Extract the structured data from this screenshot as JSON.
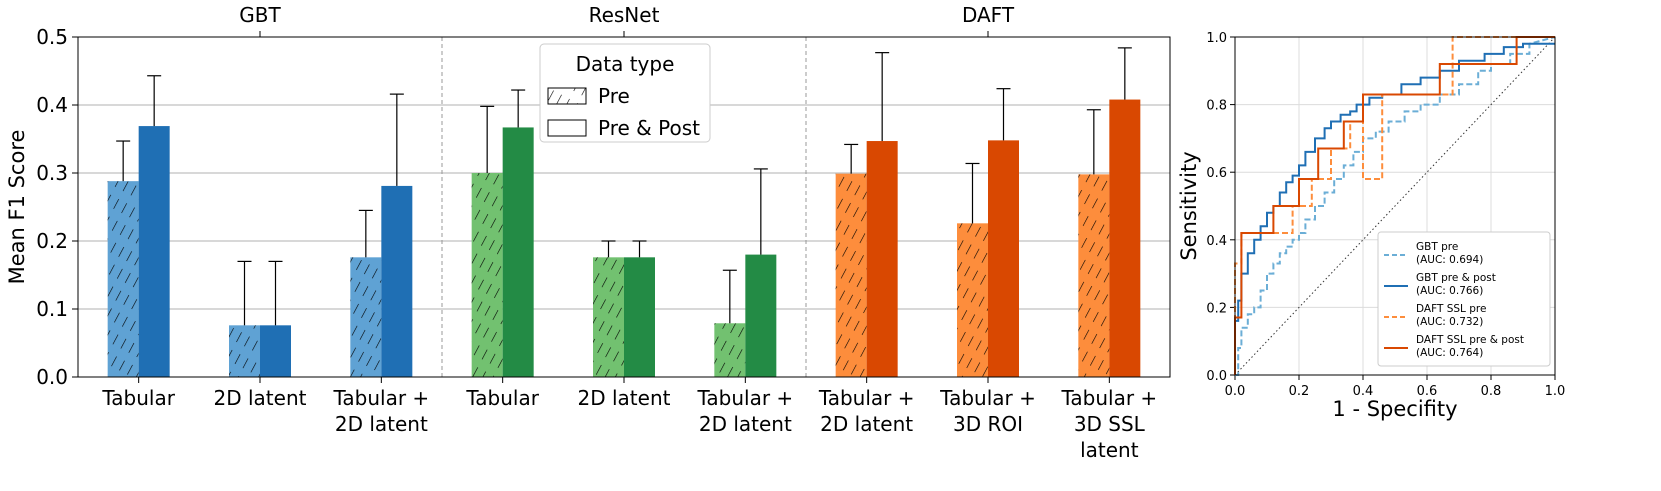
{
  "chart_data": [
    {
      "type": "bar",
      "ylabel": "Mean F1 Score",
      "ylim": [
        0,
        0.5
      ],
      "yticks": [
        "0.0",
        "0.1",
        "0.2",
        "0.3",
        "0.4",
        "0.5"
      ],
      "grid": true,
      "legend": {
        "title": "Data type",
        "placement": "top-center",
        "entries": [
          {
            "label": "Pre",
            "pattern": "hatched"
          },
          {
            "label": "Pre & Post",
            "pattern": "solid"
          }
        ]
      },
      "groups": [
        {
          "name": "GBT",
          "color_pre": "#5fa2d4",
          "color_post": "#1f6fb4",
          "categories": [
            {
              "label": [
                "Tabular"
              ],
              "pre": 0.288,
              "pre_err": 0.059,
              "post": 0.369,
              "post_err": 0.074
            },
            {
              "label": [
                "2D latent"
              ],
              "pre": 0.076,
              "pre_err": 0.094,
              "post": 0.076,
              "post_err": 0.094
            },
            {
              "label": [
                "Tabular +",
                "2D latent"
              ],
              "pre": 0.176,
              "pre_err": 0.069,
              "post": 0.281,
              "post_err": 0.135
            }
          ]
        },
        {
          "name": "ResNet",
          "color_pre": "#72c170",
          "color_post": "#238b45",
          "categories": [
            {
              "label": [
                "Tabular"
              ],
              "pre": 0.3,
              "pre_err": 0.098,
              "post": 0.367,
              "post_err": 0.055
            },
            {
              "label": [
                "2D latent"
              ],
              "pre": 0.176,
              "pre_err": 0.024,
              "post": 0.176,
              "post_err": 0.024
            },
            {
              "label": [
                "Tabular +",
                "2D latent"
              ],
              "pre": 0.079,
              "pre_err": 0.078,
              "post": 0.18,
              "post_err": 0.126
            }
          ]
        },
        {
          "name": "DAFT",
          "color_pre": "#fd8d3c",
          "color_post": "#d94801",
          "categories": [
            {
              "label": [
                "Tabular +",
                "2D latent"
              ],
              "pre": 0.299,
              "pre_err": 0.043,
              "post": 0.347,
              "post_err": 0.13
            },
            {
              "label": [
                "Tabular +",
                "3D ROI"
              ],
              "pre": 0.226,
              "pre_err": 0.088,
              "post": 0.348,
              "post_err": 0.076
            },
            {
              "label": [
                "Tabular +",
                "3D SSL",
                "latent"
              ],
              "pre": 0.298,
              "pre_err": 0.095,
              "post": 0.408,
              "post_err": 0.076
            }
          ]
        }
      ]
    },
    {
      "type": "line",
      "xlabel": "1 - Specifity",
      "ylabel": "Sensitivity",
      "xlim": [
        0,
        1
      ],
      "ylim": [
        0,
        1
      ],
      "xticks": [
        "0.0",
        "0.2",
        "0.4",
        "0.6",
        "0.8",
        "1.0"
      ],
      "yticks": [
        "0.0",
        "0.2",
        "0.4",
        "0.6",
        "0.8",
        "1.0"
      ],
      "grid": true,
      "legend_placement": "bottom-right",
      "diagonal": true,
      "series": [
        {
          "name": "GBT pre",
          "auc": "(AUC: 0.694)",
          "color": "#6baed6",
          "dashed": true,
          "x": [
            0,
            0.01,
            0.01,
            0.02,
            0.02,
            0.04,
            0.04,
            0.06,
            0.06,
            0.08,
            0.08,
            0.1,
            0.1,
            0.12,
            0.12,
            0.14,
            0.14,
            0.16,
            0.16,
            0.18,
            0.18,
            0.2,
            0.2,
            0.22,
            0.22,
            0.25,
            0.25,
            0.28,
            0.28,
            0.31,
            0.31,
            0.34,
            0.34,
            0.37,
            0.37,
            0.4,
            0.4,
            0.44,
            0.44,
            0.48,
            0.48,
            0.53,
            0.53,
            0.58,
            0.58,
            0.64,
            0.64,
            0.7,
            0.7,
            0.76,
            0.76,
            0.8,
            0.8,
            0.86,
            0.86,
            0.92,
            0.92,
            1.0
          ],
          "y": [
            0,
            0,
            0.08,
            0.08,
            0.14,
            0.14,
            0.18,
            0.18,
            0.2,
            0.2,
            0.25,
            0.25,
            0.3,
            0.3,
            0.33,
            0.33,
            0.36,
            0.36,
            0.38,
            0.38,
            0.4,
            0.4,
            0.42,
            0.42,
            0.46,
            0.46,
            0.5,
            0.5,
            0.54,
            0.54,
            0.58,
            0.58,
            0.62,
            0.62,
            0.66,
            0.66,
            0.7,
            0.7,
            0.72,
            0.72,
            0.75,
            0.75,
            0.78,
            0.78,
            0.8,
            0.8,
            0.83,
            0.83,
            0.86,
            0.86,
            0.9,
            0.9,
            0.92,
            0.92,
            0.95,
            0.95,
            0.98,
            1.0
          ]
        },
        {
          "name": "GBT pre & post",
          "auc": "(AUC: 0.766)",
          "color": "#1f6fb4",
          "dashed": false,
          "x": [
            0,
            0,
            0.01,
            0.01,
            0.02,
            0.02,
            0.04,
            0.04,
            0.06,
            0.06,
            0.08,
            0.08,
            0.1,
            0.1,
            0.12,
            0.12,
            0.14,
            0.14,
            0.16,
            0.16,
            0.18,
            0.18,
            0.2,
            0.2,
            0.22,
            0.22,
            0.25,
            0.25,
            0.28,
            0.28,
            0.3,
            0.3,
            0.33,
            0.33,
            0.36,
            0.36,
            0.38,
            0.38,
            0.42,
            0.42,
            0.46,
            0.46,
            0.52,
            0.52,
            0.58,
            0.58,
            0.64,
            0.64,
            0.7,
            0.7,
            0.78,
            0.78,
            0.84,
            0.84,
            0.9,
            0.9,
            1.0
          ],
          "y": [
            0,
            0.16,
            0.16,
            0.22,
            0.22,
            0.3,
            0.3,
            0.36,
            0.36,
            0.4,
            0.4,
            0.44,
            0.44,
            0.48,
            0.48,
            0.5,
            0.5,
            0.54,
            0.54,
            0.57,
            0.57,
            0.59,
            0.59,
            0.62,
            0.62,
            0.66,
            0.66,
            0.7,
            0.7,
            0.73,
            0.73,
            0.75,
            0.75,
            0.77,
            0.77,
            0.78,
            0.78,
            0.8,
            0.8,
            0.82,
            0.82,
            0.83,
            0.83,
            0.86,
            0.86,
            0.88,
            0.88,
            0.9,
            0.9,
            0.93,
            0.93,
            0.95,
            0.95,
            0.97,
            0.97,
            0.98,
            0.98
          ]
        },
        {
          "name": "DAFT SSL pre",
          "auc": "(AUC: 0.732)",
          "color": "#fd8d3c",
          "dashed": true,
          "x": [
            0,
            0,
            0.02,
            0.02,
            0.1,
            0.1,
            0.18,
            0.18,
            0.24,
            0.24,
            0.3,
            0.3,
            0.36,
            0.36,
            0.4,
            0.4,
            0.46,
            0.46,
            0.6,
            0.6,
            0.68,
            0.68,
            0.74,
            0.74,
            1.0
          ],
          "y": [
            0,
            0.33,
            0.33,
            0.42,
            0.42,
            0.42,
            0.42,
            0.5,
            0.5,
            0.58,
            0.58,
            0.67,
            0.67,
            0.75,
            0.75,
            0.58,
            0.58,
            0.83,
            0.83,
            0.83,
            0.83,
            1.0,
            1.0,
            1.0,
            1.0
          ]
        },
        {
          "name": "DAFT SSL pre & post",
          "auc": "(AUC: 0.764)",
          "color": "#d94801",
          "dashed": false,
          "x": [
            0,
            0,
            0.02,
            0.02,
            0.06,
            0.06,
            0.12,
            0.12,
            0.2,
            0.2,
            0.26,
            0.26,
            0.34,
            0.34,
            0.4,
            0.4,
            0.48,
            0.48,
            0.64,
            0.64,
            0.88,
            0.88,
            1.0
          ],
          "y": [
            0,
            0.17,
            0.17,
            0.42,
            0.42,
            0.42,
            0.42,
            0.5,
            0.5,
            0.58,
            0.58,
            0.67,
            0.67,
            0.75,
            0.75,
            0.83,
            0.83,
            0.83,
            0.83,
            0.92,
            0.92,
            1.0,
            1.0
          ]
        }
      ]
    }
  ]
}
